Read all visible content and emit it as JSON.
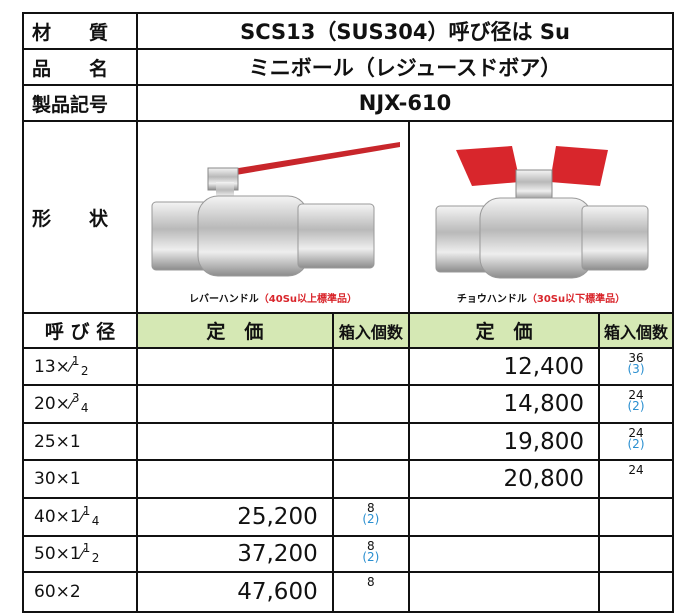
{
  "spec": [
    {
      "label": "材　　質",
      "value": "SCS13（SUS304）呼び径は Su"
    },
    {
      "label": "品　　名",
      "value": "ミニボール（レジュースドボア）"
    },
    {
      "label": "製品記号",
      "value": "NJX-610"
    }
  ],
  "shape": {
    "label": "形　　状",
    "images": [
      {
        "caption": "レバーハンドル",
        "caption_note": "（40Su以上標準品）"
      },
      {
        "caption": "チョウハンドル",
        "caption_note": "（30Su以下標準品）"
      }
    ]
  },
  "table": {
    "headers": [
      "呼 び 径",
      "定　価",
      "箱入個数",
      "定　価",
      "箱入個数"
    ],
    "rows": [
      {
        "size": {
          "whole": "13×",
          "num": "1",
          "den": "2"
        },
        "lever": null,
        "butterfly": {
          "price": "12,400",
          "qty": "36",
          "qty_sub": "(3)"
        }
      },
      {
        "size": {
          "whole": "20×",
          "num": "3",
          "den": "4"
        },
        "lever": null,
        "butterfly": {
          "price": "14,800",
          "qty": "24",
          "qty_sub": "(2)"
        }
      },
      {
        "size": {
          "whole": "25×1"
        },
        "lever": null,
        "butterfly": {
          "price": "19,800",
          "qty": "24",
          "qty_sub": "(2)"
        }
      },
      {
        "size": {
          "whole": "30×1"
        },
        "lever": null,
        "butterfly": {
          "price": "20,800",
          "qty": "24"
        }
      },
      {
        "size": {
          "whole": "40×1",
          "num": "1",
          "den": "4"
        },
        "lever": {
          "price": "25,200",
          "qty": "8",
          "qty_sub": "(2)"
        },
        "butterfly": null
      },
      {
        "size": {
          "whole": "50×1",
          "num": "1",
          "den": "2"
        },
        "lever": {
          "price": "37,200",
          "qty": "8",
          "qty_sub": "(2)"
        },
        "butterfly": null
      },
      {
        "size": {
          "whole": "60×2"
        },
        "lever": {
          "price": "47,600",
          "qty": "8"
        },
        "butterfly": null
      }
    ]
  }
}
